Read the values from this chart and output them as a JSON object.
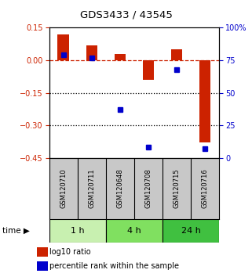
{
  "title": "GDS3433 / 43545",
  "samples": [
    "GSM120710",
    "GSM120711",
    "GSM120648",
    "GSM120708",
    "GSM120715",
    "GSM120716"
  ],
  "log10_ratio": [
    0.12,
    0.07,
    0.03,
    -0.09,
    0.05,
    -0.38
  ],
  "percentile_rank": [
    79,
    77,
    37,
    8,
    68,
    7
  ],
  "groups": [
    {
      "label": "1 h",
      "indices": [
        0,
        1
      ],
      "color": "#c8f0b0"
    },
    {
      "label": "4 h",
      "indices": [
        2,
        3
      ],
      "color": "#80e060"
    },
    {
      "label": "24 h",
      "indices": [
        4,
        5
      ],
      "color": "#40c040"
    }
  ],
  "ylim_left": [
    -0.45,
    0.15
  ],
  "ylim_right": [
    0,
    100
  ],
  "yticks_left": [
    0.15,
    0,
    -0.15,
    -0.3,
    -0.45
  ],
  "yticks_right": [
    100,
    75,
    50,
    25,
    0
  ],
  "bar_color": "#cc2200",
  "dot_color": "#0000cc",
  "hline_y": 0,
  "dotted_lines": [
    -0.15,
    -0.3
  ],
  "background_color": "#ffffff",
  "label_bg_color": "#c8c8c8",
  "legend_labels": [
    "log10 ratio",
    "percentile rank within the sample"
  ]
}
